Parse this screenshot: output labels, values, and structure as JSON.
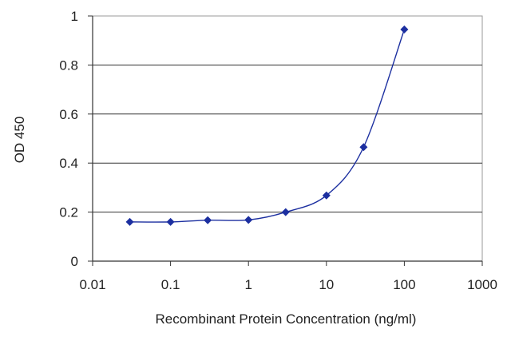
{
  "chart_data": {
    "type": "scatter",
    "title": "",
    "xlabel": "Recombinant Protein Concentration (ng/ml)",
    "ylabel": "OD 450",
    "x_scale": "log",
    "xlim": [
      0.01,
      1000
    ],
    "ylim": [
      0,
      1
    ],
    "x_ticks": [
      {
        "value": 0.01,
        "label": "0.01"
      },
      {
        "value": 0.1,
        "label": "0.1"
      },
      {
        "value": 1,
        "label": "1"
      },
      {
        "value": 10,
        "label": "10"
      },
      {
        "value": 100,
        "label": "100"
      },
      {
        "value": 1000,
        "label": "1000"
      }
    ],
    "y_ticks": [
      {
        "value": 0,
        "label": "0"
      },
      {
        "value": 0.2,
        "label": "0.2"
      },
      {
        "value": 0.4,
        "label": "0.4"
      },
      {
        "value": 0.6,
        "label": "0.6"
      },
      {
        "value": 0.8,
        "label": "0.8"
      },
      {
        "value": 1,
        "label": "1"
      }
    ],
    "grid": "horizontal",
    "legend": "none",
    "series": [
      {
        "x": [
          0.03,
          0.1,
          0.3,
          1,
          3,
          10,
          30,
          100
        ],
        "y": [
          0.16,
          0.16,
          0.167,
          0.168,
          0.2,
          0.268,
          0.465,
          0.945
        ],
        "color": "#1c2fa0",
        "marker": "diamond",
        "fit_curve": true
      }
    ]
  }
}
